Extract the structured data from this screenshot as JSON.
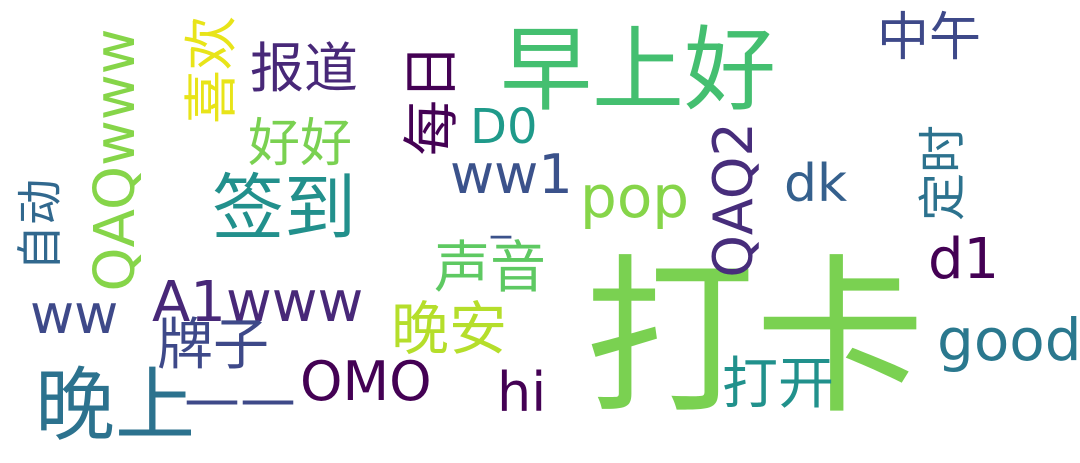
{
  "words": [
    {
      "key": "daka",
      "text": "打卡",
      "color": "#7ad151"
    },
    {
      "key": "zaoshanghao",
      "text": "早上好",
      "color": "#44bf70"
    },
    {
      "key": "qiandao",
      "text": "签到",
      "color": "#22908c"
    },
    {
      "key": "wanshang",
      "text": "晚上",
      "color": "#2c728e"
    },
    {
      "key": "zhongwu",
      "text": "中午",
      "color": "#3e4989"
    },
    {
      "key": "baodao",
      "text": "报道",
      "color": "#482878"
    },
    {
      "key": "haohao",
      "text": "好好",
      "color": "#7ad151"
    },
    {
      "key": "meiri",
      "text": "每日",
      "color": "#440154"
    },
    {
      "key": "xihuan",
      "text": "喜欢",
      "color": "#e8e419"
    },
    {
      "key": "qaqwww",
      "text": "QAQwww",
      "color": "#86d549"
    },
    {
      "key": "zidong",
      "text": "自动",
      "color": "#31688e"
    },
    {
      "key": "d0",
      "text": "D0",
      "color": "#1f9a8a"
    },
    {
      "key": "ww1",
      "text": "ww1",
      "color": "#3b528b"
    },
    {
      "key": "pop",
      "text": "pop",
      "color": "#86d549"
    },
    {
      "key": "qaq2",
      "text": "QAQ2",
      "color": "#472d7b"
    },
    {
      "key": "dk",
      "text": "dk",
      "color": "#35608d"
    },
    {
      "key": "dingshi",
      "text": "定时",
      "color": "#2c728e"
    },
    {
      "key": "d1",
      "text": "d1",
      "color": "#440154"
    },
    {
      "key": "shengyin",
      "text": "声音",
      "color": "#5ec962"
    },
    {
      "key": "underscore",
      "text": "_",
      "color": "#3b528b"
    },
    {
      "key": "a1www",
      "text": "A1www",
      "color": "#482878"
    },
    {
      "key": "ww",
      "text": "ww",
      "color": "#3e4989"
    },
    {
      "key": "paizi",
      "text": "牌子",
      "color": "#3e4989"
    },
    {
      "key": "wanan",
      "text": "晚安",
      "color": "#b5de2b"
    },
    {
      "key": "omo",
      "text": "OMO",
      "color": "#440154"
    },
    {
      "key": "hi",
      "text": "hi",
      "color": "#440154"
    },
    {
      "key": "dakai",
      "text": "打开",
      "color": "#21918c"
    },
    {
      "key": "good",
      "text": "good",
      "color": "#2a788e"
    },
    {
      "key": "dash",
      "text": "——",
      "color": "#3e4989"
    }
  ]
}
